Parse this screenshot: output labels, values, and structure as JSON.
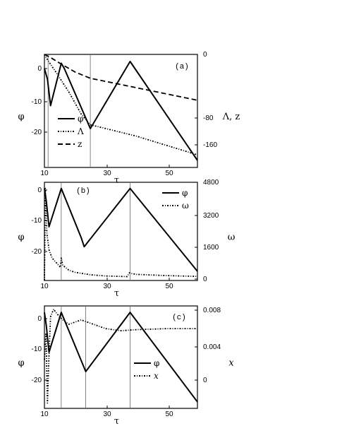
{
  "chart_data": [
    {
      "type": "line",
      "panel_label": "(a)",
      "xlabel": "τ",
      "ylabel_left": "φ",
      "ylabel_right": "Λ, z",
      "xlim": [
        10,
        60
      ],
      "ylim_left": [
        -28,
        4
      ],
      "ylim_right": [
        -180,
        0
      ],
      "xticks": [
        "10",
        "30",
        "50"
      ],
      "yticks_left": [
        "0",
        "-10",
        "-20"
      ],
      "yticks_right": [
        "0",
        "-80",
        "-160"
      ],
      "legend_position": "bottom-left",
      "vlines": [
        11.2,
        25
      ],
      "series": [
        {
          "name": "φ",
          "axis": "left",
          "style": "solid",
          "x": [
            10,
            11,
            12,
            15.5,
            16.5,
            25,
            38,
            60
          ],
          "y": [
            0,
            -3,
            -10.5,
            1.5,
            0,
            -17,
            2,
            -26
          ]
        },
        {
          "name": "Λ",
          "axis": "right",
          "style": "dashdot",
          "x": [
            10,
            11.2,
            14,
            18,
            22,
            25,
            30,
            40,
            50,
            60
          ],
          "y": [
            0,
            -10,
            -30,
            -60,
            -95,
            -112,
            -118,
            -130,
            -145,
            -160
          ]
        },
        {
          "name": "z",
          "axis": "right",
          "style": "dashed",
          "x": [
            10,
            12,
            15,
            20,
            25,
            30,
            40,
            50,
            60
          ],
          "y": [
            0,
            -5,
            -14,
            -28,
            -38,
            -43,
            -53,
            -63,
            -73
          ]
        }
      ]
    },
    {
      "type": "line",
      "panel_label": "(b)",
      "xlabel": "τ",
      "ylabel_left": "φ",
      "ylabel_right": "ω",
      "xlim": [
        10,
        60
      ],
      "ylim_left": [
        -28,
        4
      ],
      "ylim_right": [
        0,
        4800
      ],
      "xticks": [
        "10",
        "30",
        "50"
      ],
      "yticks_left": [
        "0",
        "-10",
        "-20"
      ],
      "yticks_right": [
        "4800",
        "3200",
        "1600",
        "0"
      ],
      "legend_position": "top-right",
      "vlines": [
        15.5,
        38
      ],
      "series": [
        {
          "name": "φ",
          "axis": "left",
          "style": "solid",
          "x": [
            10,
            10.6,
            11.5,
            15.5,
            22,
            23,
            38,
            60
          ],
          "y": [
            2,
            -2,
            -10.5,
            2,
            -14,
            -17,
            2,
            -25
          ]
        },
        {
          "name": "ω",
          "axis": "right",
          "style": "dashdot",
          "x": [
            10,
            10.3,
            10.8,
            11.5,
            12.5,
            14,
            15.2,
            15.5,
            16,
            18,
            20,
            25,
            30,
            37,
            37.8,
            38.2,
            40,
            50,
            60
          ],
          "y": [
            0,
            4500,
            2300,
            1500,
            1100,
            850,
            650,
            1100,
            750,
            500,
            400,
            280,
            220,
            190,
            380,
            350,
            300,
            240,
            200
          ]
        }
      ]
    },
    {
      "type": "line",
      "panel_label": "(c)",
      "xlabel": "τ",
      "ylabel_left": "φ",
      "ylabel_right": "x",
      "xlim": [
        10,
        60
      ],
      "ylim_left": [
        -28,
        4
      ],
      "ylim_right": [
        -0.001,
        0.0085
      ],
      "xticks": [
        "10",
        "30",
        "50"
      ],
      "yticks_left": [
        "0",
        "-10",
        "-20"
      ],
      "yticks_right": [
        "0.008",
        "0.004",
        "0"
      ],
      "legend_position": "bottom-right",
      "vlines": [
        15.5,
        23.5,
        38
      ],
      "series": [
        {
          "name": "φ",
          "axis": "left",
          "style": "solid",
          "x": [
            10,
            10.6,
            11.5,
            15.5,
            23.5,
            38,
            60
          ],
          "y": [
            2,
            -2,
            -10.5,
            2,
            -16.5,
            2,
            -26
          ]
        },
        {
          "name": "x",
          "axis": "right",
          "style": "dashdot",
          "x": [
            10,
            10.5,
            11,
            11.5,
            12,
            13,
            14,
            16,
            18,
            22,
            26,
            30,
            35,
            40,
            50,
            60
          ],
          "y": [
            0.0035,
            0.006,
            -0.0005,
            0.004,
            0.0075,
            0.0082,
            0.0078,
            0.0072,
            0.0068,
            0.0072,
            0.0068,
            0.0064,
            0.0062,
            0.0063,
            0.0064,
            0.0064
          ]
        }
      ]
    }
  ]
}
